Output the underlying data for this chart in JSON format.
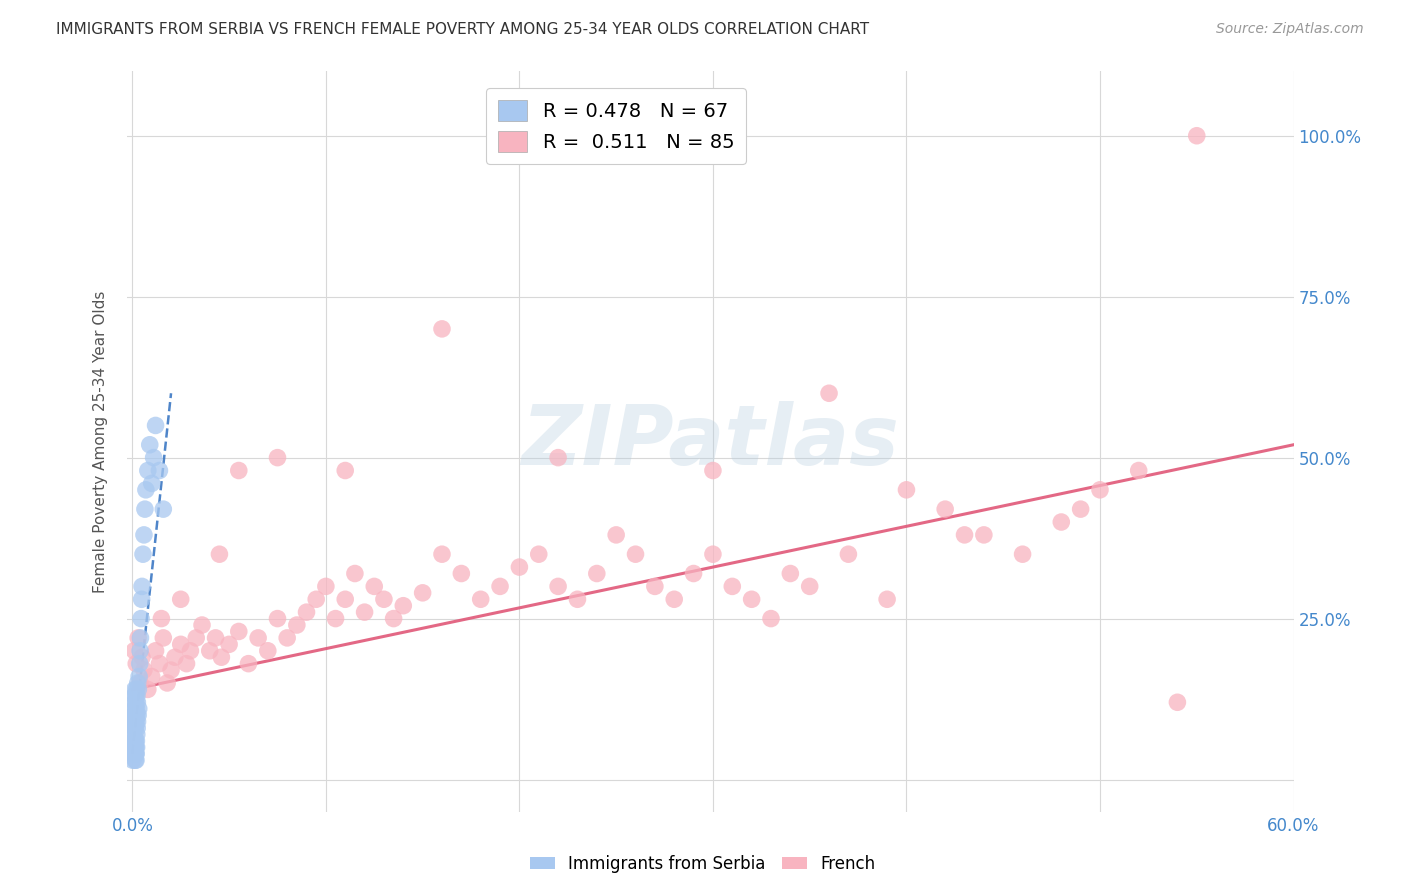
{
  "title": "IMMIGRANTS FROM SERBIA VS FRENCH FEMALE POVERTY AMONG 25-34 YEAR OLDS CORRELATION CHART",
  "source": "Source: ZipAtlas.com",
  "ylabel": "Female Poverty Among 25-34 Year Olds",
  "xlim": [
    -0.003,
    0.6
  ],
  "ylim": [
    -0.05,
    1.1
  ],
  "ytick_positions": [
    0.0,
    0.25,
    0.5,
    0.75,
    1.0
  ],
  "ytick_labels_right": [
    "",
    "25.0%",
    "50.0%",
    "75.0%",
    "100.0%"
  ],
  "xtick_positions": [
    0.0,
    0.1,
    0.2,
    0.3,
    0.4,
    0.5,
    0.6
  ],
  "xtick_labels": [
    "0.0%",
    "",
    "",
    "",
    "",
    "",
    "60.0%"
  ],
  "serbia_color": "#a8c8f0",
  "french_color": "#f8b4c0",
  "serbia_R": 0.478,
  "serbia_N": 67,
  "french_R": 0.511,
  "french_N": 85,
  "serbia_line_color": "#3070c0",
  "french_line_color": "#e05878",
  "watermark_text": "ZIPatlas",
  "legend_serbia_label": "Immigrants from Serbia",
  "legend_french_label": "French",
  "grid_color": "#d8d8d8",
  "title_color": "#333333",
  "axis_label_color": "#4488cc",
  "background_color": "#ffffff",
  "serbia_scatter_x": [
    0.0002,
    0.0003,
    0.0004,
    0.0005,
    0.0005,
    0.0006,
    0.0007,
    0.0007,
    0.0008,
    0.0008,
    0.0009,
    0.0009,
    0.001,
    0.001,
    0.001,
    0.0011,
    0.0011,
    0.0012,
    0.0012,
    0.0013,
    0.0013,
    0.0013,
    0.0014,
    0.0014,
    0.0015,
    0.0015,
    0.0016,
    0.0016,
    0.0017,
    0.0017,
    0.0018,
    0.0018,
    0.0019,
    0.0019,
    0.002,
    0.002,
    0.0021,
    0.0021,
    0.0022,
    0.0023,
    0.0023,
    0.0024,
    0.0025,
    0.0026,
    0.0027,
    0.0028,
    0.003,
    0.0031,
    0.0033,
    0.0035,
    0.0038,
    0.004,
    0.0042,
    0.0045,
    0.0048,
    0.005,
    0.0055,
    0.006,
    0.0065,
    0.007,
    0.008,
    0.009,
    0.01,
    0.011,
    0.012,
    0.014,
    0.016
  ],
  "serbia_scatter_y": [
    0.03,
    0.05,
    0.04,
    0.06,
    0.08,
    0.04,
    0.07,
    0.1,
    0.05,
    0.09,
    0.06,
    0.11,
    0.04,
    0.08,
    0.13,
    0.05,
    0.1,
    0.06,
    0.12,
    0.04,
    0.09,
    0.14,
    0.05,
    0.11,
    0.03,
    0.08,
    0.06,
    0.13,
    0.04,
    0.1,
    0.05,
    0.12,
    0.03,
    0.09,
    0.04,
    0.11,
    0.06,
    0.14,
    0.05,
    0.1,
    0.07,
    0.13,
    0.08,
    0.12,
    0.09,
    0.15,
    0.1,
    0.14,
    0.11,
    0.16,
    0.18,
    0.2,
    0.22,
    0.25,
    0.28,
    0.3,
    0.35,
    0.38,
    0.42,
    0.45,
    0.48,
    0.52,
    0.46,
    0.5,
    0.55,
    0.48,
    0.42
  ],
  "french_scatter_x": [
    0.001,
    0.002,
    0.003,
    0.004,
    0.005,
    0.006,
    0.008,
    0.01,
    0.012,
    0.014,
    0.016,
    0.018,
    0.02,
    0.022,
    0.025,
    0.028,
    0.03,
    0.033,
    0.036,
    0.04,
    0.043,
    0.046,
    0.05,
    0.055,
    0.06,
    0.065,
    0.07,
    0.075,
    0.08,
    0.085,
    0.09,
    0.095,
    0.1,
    0.105,
    0.11,
    0.115,
    0.12,
    0.125,
    0.13,
    0.135,
    0.14,
    0.15,
    0.16,
    0.17,
    0.18,
    0.19,
    0.2,
    0.21,
    0.22,
    0.23,
    0.24,
    0.25,
    0.26,
    0.27,
    0.28,
    0.29,
    0.3,
    0.31,
    0.32,
    0.33,
    0.34,
    0.35,
    0.37,
    0.39,
    0.4,
    0.42,
    0.44,
    0.46,
    0.48,
    0.5,
    0.52,
    0.015,
    0.025,
    0.045,
    0.055,
    0.075,
    0.11,
    0.16,
    0.22,
    0.3,
    0.36,
    0.43,
    0.49,
    0.54,
    0.55
  ],
  "french_scatter_y": [
    0.2,
    0.18,
    0.22,
    0.15,
    0.19,
    0.17,
    0.14,
    0.16,
    0.2,
    0.18,
    0.22,
    0.15,
    0.17,
    0.19,
    0.21,
    0.18,
    0.2,
    0.22,
    0.24,
    0.2,
    0.22,
    0.19,
    0.21,
    0.23,
    0.18,
    0.22,
    0.2,
    0.25,
    0.22,
    0.24,
    0.26,
    0.28,
    0.3,
    0.25,
    0.28,
    0.32,
    0.26,
    0.3,
    0.28,
    0.25,
    0.27,
    0.29,
    0.35,
    0.32,
    0.28,
    0.3,
    0.33,
    0.35,
    0.3,
    0.28,
    0.32,
    0.38,
    0.35,
    0.3,
    0.28,
    0.32,
    0.35,
    0.3,
    0.28,
    0.25,
    0.32,
    0.3,
    0.35,
    0.28,
    0.45,
    0.42,
    0.38,
    0.35,
    0.4,
    0.45,
    0.48,
    0.25,
    0.28,
    0.35,
    0.48,
    0.5,
    0.48,
    0.7,
    0.5,
    0.48,
    0.6,
    0.38,
    0.42,
    0.12,
    1.0
  ],
  "serbia_trendline_x": [
    0.0,
    0.02
  ],
  "serbia_trendline_y_start": 0.04,
  "serbia_trendline_y_end": 0.6,
  "french_trendline_x": [
    0.0,
    0.6
  ],
  "french_trendline_y_start": 0.14,
  "french_trendline_y_end": 0.52
}
